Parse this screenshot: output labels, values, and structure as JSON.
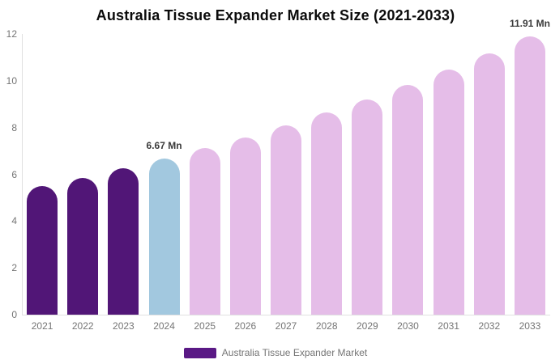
{
  "title": "Australia Tissue Expander Market Size (2021-2033)",
  "legend": {
    "label": "Australia Tissue Expander Market",
    "swatch_color": "#5a1985"
  },
  "colors": {
    "historical_bar": "#511677",
    "highlight_bar": "#a2c8df",
    "forecast_bar": "#e5bde8",
    "axis_line": "#e0e0e0",
    "tick_text": "#757575",
    "title_text": "#0b0b0b",
    "data_label_text": "#3a3a3a"
  },
  "chart_data": {
    "type": "bar",
    "title": "Australia Tissue Expander Market Size (2021-2033)",
    "xlabel": "",
    "ylabel": "",
    "ylim": [
      0,
      12
    ],
    "yticks": [
      0,
      2,
      4,
      6,
      8,
      10,
      12
    ],
    "grid": false,
    "legend_position": "bottom",
    "categories": [
      "2021",
      "2022",
      "2023",
      "2024",
      "2025",
      "2026",
      "2027",
      "2028",
      "2029",
      "2030",
      "2031",
      "2032",
      "2033"
    ],
    "values": [
      5.5,
      5.86,
      6.25,
      6.67,
      7.11,
      7.59,
      8.09,
      8.63,
      9.2,
      9.81,
      10.47,
      11.16,
      11.91
    ],
    "point_colors": [
      "#511677",
      "#511677",
      "#511677",
      "#a2c8df",
      "#e5bde8",
      "#e5bde8",
      "#e5bde8",
      "#e5bde8",
      "#e5bde8",
      "#e5bde8",
      "#e5bde8",
      "#e5bde8",
      "#e5bde8"
    ],
    "data_labels": [
      {
        "index": 3,
        "text": "6.67 Mn"
      },
      {
        "index": 12,
        "text": "11.91 Mn"
      }
    ]
  }
}
